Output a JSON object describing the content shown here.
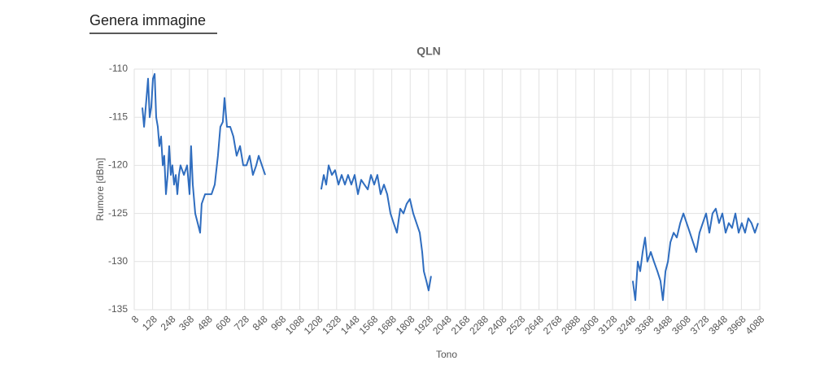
{
  "header": {
    "button": "Genera immagine"
  },
  "chart_data": {
    "type": "line",
    "title": "QLN",
    "xlabel": "Tono",
    "ylabel": "Rumore [dBm]",
    "xlim": [
      8,
      4088
    ],
    "ylim": [
      -135,
      -110
    ],
    "xticks": [
      8,
      128,
      248,
      368,
      488,
      608,
      728,
      848,
      968,
      1088,
      1208,
      1328,
      1448,
      1568,
      1688,
      1808,
      1928,
      2048,
      2168,
      2288,
      2408,
      2528,
      2648,
      2768,
      2888,
      3008,
      3128,
      3248,
      3368,
      3488,
      3608,
      3728,
      3848,
      3968,
      4088
    ],
    "yticks": [
      -110,
      -115,
      -120,
      -125,
      -130,
      -135
    ],
    "grid": true,
    "x": [
      61,
      72,
      88,
      98,
      109,
      119,
      130,
      141,
      151,
      162,
      172,
      183,
      194,
      204,
      215,
      226,
      236,
      247,
      257,
      268,
      279,
      289,
      300,
      310,
      332,
      353,
      369,
      379,
      390,
      406,
      422,
      438,
      448,
      470,
      491,
      512,
      533,
      554,
      570,
      586,
      597,
      613,
      634,
      655,
      676,
      698,
      719,
      740,
      761,
      782,
      804,
      820,
      841,
      862,
      1000,
      1228,
      1244,
      1260,
      1276,
      1297,
      1318,
      1340,
      1361,
      1382,
      1403,
      1424,
      1446,
      1467,
      1488,
      1509,
      1531,
      1552,
      1573,
      1594,
      1615,
      1637,
      1658,
      1679,
      1700,
      1721,
      1743,
      1764,
      1785,
      1806,
      1828,
      1849,
      1870,
      1886,
      1897,
      1913,
      1928,
      1944,
      3000,
      3260,
      3276,
      3292,
      3308,
      3324,
      3340,
      3355,
      3377,
      3398,
      3420,
      3440,
      3456,
      3473,
      3489,
      3505,
      3526,
      3547,
      3569,
      3590,
      3611,
      3632,
      3653,
      3674,
      3695,
      3716,
      3738,
      3759,
      3780,
      3801,
      3822,
      3844,
      3865,
      3886,
      3907,
      3929,
      3950,
      3971,
      3992,
      4013,
      4034,
      4056,
      4077
    ],
    "series": [
      {
        "name": "QLN",
        "color": "#2f6dbf",
        "values": [
          -114,
          -116,
          -113,
          -111,
          -115,
          -114,
          -111,
          -110.5,
          -115,
          -116,
          -118,
          -117,
          -120,
          -119,
          -123,
          -121,
          -118,
          -121,
          -120,
          -122,
          -121,
          -123,
          -121,
          -120,
          -121,
          -120,
          -123,
          -118,
          -122,
          -125,
          -126,
          -127,
          -124,
          -123,
          -123,
          -123,
          -122,
          -119,
          -116,
          -115.5,
          -113,
          -116,
          -116,
          -117,
          -119,
          -118,
          -120,
          -120,
          -119,
          -121,
          -120,
          -119,
          -120,
          -121,
          null,
          -122.5,
          -121,
          -122,
          -120,
          -121,
          -120.5,
          -122,
          -121,
          -122,
          -121,
          -122,
          -121,
          -123,
          -121.5,
          -122,
          -122.5,
          -121,
          -122,
          -121,
          -123,
          -122,
          -123,
          -125,
          -126,
          -127,
          -124.5,
          -125,
          -124,
          -123.5,
          -125,
          -126,
          -127,
          -129,
          -131,
          -132,
          -133,
          -131.5,
          null,
          -132,
          -134,
          -130,
          -131,
          -129,
          -127.5,
          -130,
          -129,
          -130,
          -131,
          -132,
          -134,
          -131,
          -130,
          -128,
          -127,
          -127.5,
          -126,
          -125,
          -126,
          -127,
          -128,
          -129,
          -127,
          -126,
          -125,
          -127,
          -125,
          -124.5,
          -126,
          -125,
          -127,
          -126,
          -126.5,
          -125,
          -127,
          -126,
          -127,
          -125.5,
          -126,
          -127,
          -126
        ]
      }
    ]
  }
}
